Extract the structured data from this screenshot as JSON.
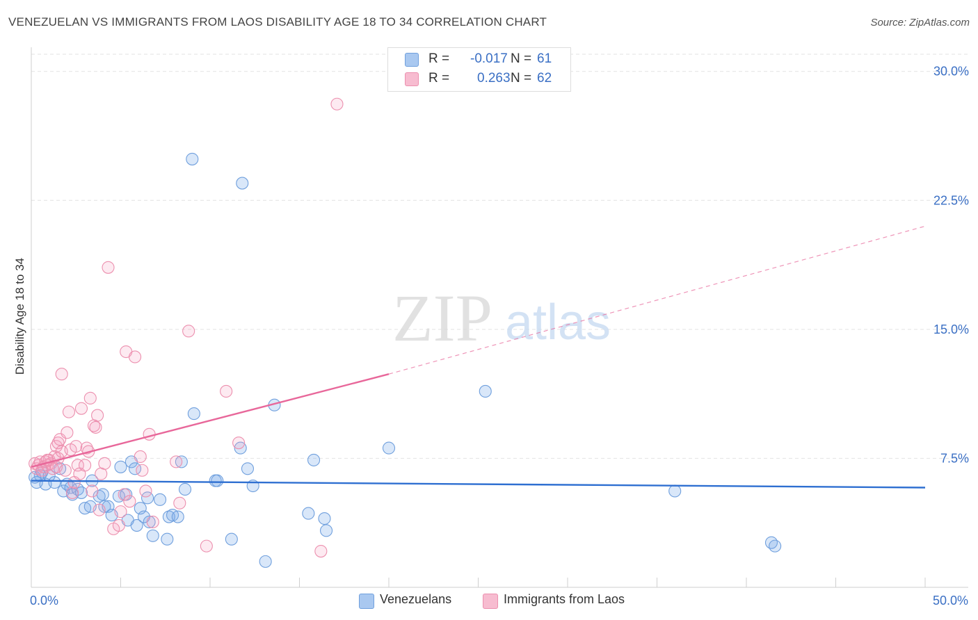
{
  "title": "VENEZUELAN VS IMMIGRANTS FROM LAOS DISABILITY AGE 18 TO 34 CORRELATION CHART",
  "source": "Source: ZipAtlas.com",
  "watermark": {
    "zip": "ZIP",
    "atlas": "atlas"
  },
  "legend": {
    "r_label": "R =",
    "n_label": "N =",
    "rows": [
      {
        "r": "-0.017",
        "n": "61",
        "swatch": "#a9c8f0",
        "border": "#6f9fdd"
      },
      {
        "r": "0.263",
        "n": "62",
        "swatch": "#f7bcd0",
        "border": "#ec8fae"
      }
    ]
  },
  "bottom_legend": [
    "Venezuelans",
    "Immigrants from Laos"
  ],
  "colors": {
    "blue_fill": "rgba(120,170,235,0.28)",
    "blue_stroke": "#6f9fdd",
    "blue_line": "#2e6fd1",
    "pink_fill": "rgba(245,160,190,0.22)",
    "pink_stroke": "#ec8fae",
    "pink_line": "#e8679a",
    "grid": "#e2e2e2",
    "axis_label": "#3a6fc4"
  },
  "chart_data": {
    "type": "scatter",
    "title": "VENEZUELAN VS IMMIGRANTS FROM LAOS DISABILITY AGE 18 TO 34 CORRELATION CHART",
    "xlabel": "",
    "ylabel": "Disability Age 18 to 34",
    "xlim": [
      0,
      50
    ],
    "ylim": [
      0,
      31
    ],
    "x_tick_labels": [
      {
        "value": 0,
        "label": "0.0%"
      },
      {
        "value": 50,
        "label": "50.0%"
      }
    ],
    "y_ticks": [
      {
        "value": 7.5,
        "label": "7.5%"
      },
      {
        "value": 15.0,
        "label": "15.0%"
      },
      {
        "value": 22.5,
        "label": "22.5%"
      },
      {
        "value": 30.0,
        "label": "30.0%"
      }
    ],
    "series": [
      {
        "name": "Venezuelans",
        "color": "blue",
        "trend": {
          "x1": 0,
          "y1": 6.2,
          "x2": 50,
          "y2": 5.8,
          "dashed_from": null
        },
        "points": [
          [
            0.3,
            6.1
          ],
          [
            0.5,
            6.5
          ],
          [
            0.6,
            6.7
          ],
          [
            0.8,
            6.0
          ],
          [
            1.0,
            6.5
          ],
          [
            1.3,
            6.1
          ],
          [
            1.6,
            6.9
          ],
          [
            1.8,
            5.6
          ],
          [
            2.0,
            6.0
          ],
          [
            2.2,
            5.8
          ],
          [
            2.3,
            5.4
          ],
          [
            2.6,
            5.7
          ],
          [
            2.8,
            5.5
          ],
          [
            3.0,
            4.6
          ],
          [
            3.3,
            4.7
          ],
          [
            3.4,
            6.2
          ],
          [
            3.8,
            5.3
          ],
          [
            4.0,
            5.4
          ],
          [
            4.1,
            4.7
          ],
          [
            4.3,
            4.7
          ],
          [
            4.5,
            4.2
          ],
          [
            4.9,
            5.3
          ],
          [
            5.0,
            7.0
          ],
          [
            5.3,
            5.4
          ],
          [
            5.4,
            3.9
          ],
          [
            5.6,
            7.3
          ],
          [
            5.8,
            6.9
          ],
          [
            5.9,
            3.6
          ],
          [
            6.1,
            4.6
          ],
          [
            6.3,
            4.1
          ],
          [
            6.5,
            5.2
          ],
          [
            6.6,
            3.8
          ],
          [
            6.8,
            3.0
          ],
          [
            7.2,
            5.1
          ],
          [
            7.6,
            2.8
          ],
          [
            7.7,
            4.1
          ],
          [
            7.9,
            4.2
          ],
          [
            8.2,
            4.1
          ],
          [
            8.4,
            7.3
          ],
          [
            8.6,
            5.7
          ],
          [
            9.1,
            10.1
          ],
          [
            9.0,
            24.9
          ],
          [
            10.3,
            6.2
          ],
          [
            10.4,
            6.2
          ],
          [
            11.2,
            2.8
          ],
          [
            11.7,
            8.1
          ],
          [
            11.8,
            23.5
          ],
          [
            12.1,
            6.9
          ],
          [
            12.4,
            5.9
          ],
          [
            13.1,
            1.5
          ],
          [
            13.6,
            10.6
          ],
          [
            15.5,
            4.3
          ],
          [
            15.8,
            7.4
          ],
          [
            16.4,
            4.0
          ],
          [
            16.5,
            3.3
          ],
          [
            20.0,
            8.1
          ],
          [
            25.4,
            11.4
          ],
          [
            36.0,
            5.6
          ],
          [
            41.4,
            2.6
          ],
          [
            41.6,
            2.4
          ],
          [
            0.2,
            6.4
          ]
        ]
      },
      {
        "name": "Immigrants from Laos",
        "color": "pink",
        "trend": {
          "x1": 0,
          "y1": 7.0,
          "x2": 20,
          "y2": 12.4,
          "dashed_from": 20,
          "x3": 50,
          "y3": 21.0
        },
        "points": [
          [
            0.2,
            7.2
          ],
          [
            0.3,
            6.9
          ],
          [
            0.4,
            7.1
          ],
          [
            0.5,
            7.3
          ],
          [
            0.6,
            6.8
          ],
          [
            0.7,
            7.0
          ],
          [
            0.8,
            7.3
          ],
          [
            0.9,
            7.1
          ],
          [
            1.0,
            7.4
          ],
          [
            1.1,
            7.2
          ],
          [
            1.2,
            6.9
          ],
          [
            1.3,
            7.6
          ],
          [
            1.4,
            7.0
          ],
          [
            1.5,
            7.5
          ],
          [
            1.4,
            8.2
          ],
          [
            1.5,
            8.4
          ],
          [
            1.6,
            8.6
          ],
          [
            1.7,
            7.9
          ],
          [
            1.9,
            6.8
          ],
          [
            2.0,
            9.0
          ],
          [
            2.1,
            10.2
          ],
          [
            2.2,
            8.0
          ],
          [
            2.3,
            5.5
          ],
          [
            2.4,
            6.1
          ],
          [
            2.5,
            8.2
          ],
          [
            2.6,
            7.1
          ],
          [
            2.7,
            6.6
          ],
          [
            2.8,
            10.4
          ],
          [
            3.0,
            7.1
          ],
          [
            3.1,
            8.1
          ],
          [
            3.2,
            7.9
          ],
          [
            3.3,
            11.0
          ],
          [
            3.4,
            5.6
          ],
          [
            3.5,
            9.4
          ],
          [
            3.6,
            9.3
          ],
          [
            3.7,
            10.0
          ],
          [
            3.8,
            4.5
          ],
          [
            3.9,
            6.6
          ],
          [
            4.1,
            7.2
          ],
          [
            4.3,
            18.6
          ],
          [
            4.6,
            3.4
          ],
          [
            4.9,
            3.6
          ],
          [
            5.0,
            4.4
          ],
          [
            5.2,
            5.4
          ],
          [
            5.3,
            13.7
          ],
          [
            5.5,
            5.0
          ],
          [
            5.8,
            13.4
          ],
          [
            6.1,
            7.6
          ],
          [
            6.2,
            6.8
          ],
          [
            6.4,
            5.6
          ],
          [
            6.6,
            8.9
          ],
          [
            6.8,
            3.8
          ],
          [
            8.1,
            7.3
          ],
          [
            8.3,
            4.9
          ],
          [
            8.8,
            14.9
          ],
          [
            9.8,
            2.4
          ],
          [
            10.9,
            11.4
          ],
          [
            11.6,
            8.4
          ],
          [
            16.2,
            2.1
          ],
          [
            17.1,
            28.1
          ],
          [
            1.7,
            12.4
          ],
          [
            0.9,
            7.4
          ]
        ]
      }
    ]
  }
}
